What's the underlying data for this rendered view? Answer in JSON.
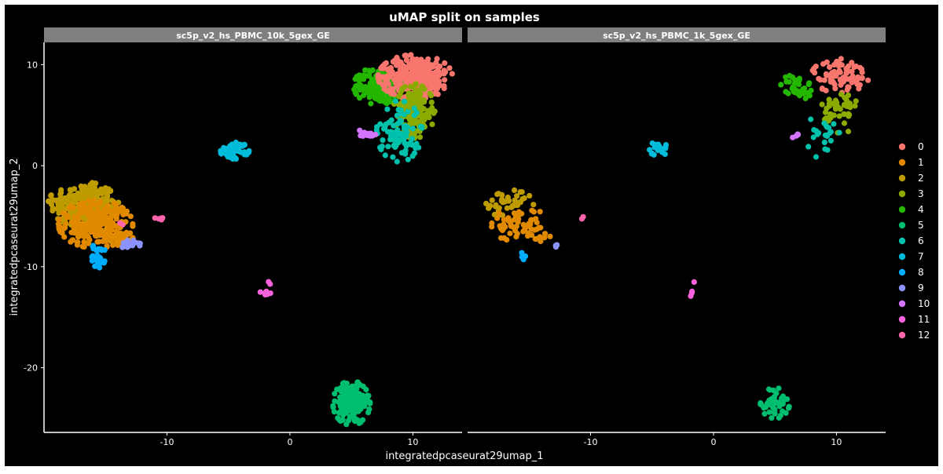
{
  "chart_data": {
    "type": "scatter",
    "title": "uMAP split on samples",
    "xlabel": "integratedpcaseurat29umap_1",
    "ylabel": "integratedpcaseurat29umap_2",
    "xlim": [
      -20,
      14
    ],
    "ylim": [
      -26.4,
      12.2
    ],
    "xticks": [
      -10,
      0,
      10
    ],
    "yticks": [
      10,
      0,
      -10,
      -20
    ],
    "grid": false,
    "legend_position": "right",
    "legend": [
      {
        "label": "0",
        "color": "#F8766D"
      },
      {
        "label": "1",
        "color": "#E18A00"
      },
      {
        "label": "2",
        "color": "#BE9C00"
      },
      {
        "label": "3",
        "color": "#8CAB00"
      },
      {
        "label": "4",
        "color": "#24B700"
      },
      {
        "label": "5",
        "color": "#00BE70"
      },
      {
        "label": "6",
        "color": "#00C1AB"
      },
      {
        "label": "7",
        "color": "#00BBDA"
      },
      {
        "label": "8",
        "color": "#00ACFC"
      },
      {
        "label": "9",
        "color": "#8B93FF"
      },
      {
        "label": "10",
        "color": "#D575FE"
      },
      {
        "label": "11",
        "color": "#F962DD"
      },
      {
        "label": "12",
        "color": "#FF65AC"
      }
    ],
    "panels": [
      {
        "label": "sc5p_v2_hs_PBMC_10k_5gex_GE",
        "clusters": [
          {
            "cluster": "2",
            "cx": -16.8,
            "cy": -3.8,
            "rx": 1.7,
            "ry": 1.3,
            "n": 240
          },
          {
            "cluster": "1",
            "cx": -15.8,
            "cy": -5.8,
            "rx": 1.8,
            "ry": 1.4,
            "n": 240
          },
          {
            "cluster": "1",
            "cx": -14.0,
            "cy": -7.2,
            "rx": 0.8,
            "ry": 0.4,
            "n": 40
          },
          {
            "cluster": "8",
            "cx": -15.6,
            "cy": -8.9,
            "rx": 0.35,
            "ry": 0.8,
            "n": 30
          },
          {
            "cluster": "9",
            "cx": -13.0,
            "cy": -7.8,
            "rx": 0.5,
            "ry": 0.25,
            "n": 18
          },
          {
            "cluster": "12",
            "cx": -13.7,
            "cy": -5.7,
            "rx": 0.1,
            "ry": 0.1,
            "n": 2
          },
          {
            "cluster": "12",
            "cx": -10.7,
            "cy": -5.2,
            "rx": 0.3,
            "ry": 0.15,
            "n": 8
          },
          {
            "cluster": "7",
            "cx": -4.5,
            "cy": 1.5,
            "rx": 0.7,
            "ry": 0.5,
            "n": 60
          },
          {
            "cluster": "11",
            "cx": -2.0,
            "cy": -12.6,
            "rx": 0.25,
            "ry": 0.2,
            "n": 8
          },
          {
            "cluster": "11",
            "cx": -1.6,
            "cy": -11.6,
            "rx": 0.1,
            "ry": 0.1,
            "n": 2
          },
          {
            "cluster": "5",
            "cx": 5.0,
            "cy": -23.5,
            "rx": 0.9,
            "ry": 1.3,
            "n": 160
          },
          {
            "cluster": "4",
            "cx": 7.2,
            "cy": 7.9,
            "rx": 1.2,
            "ry": 1.1,
            "n": 160
          },
          {
            "cluster": "0",
            "cx": 10.2,
            "cy": 8.8,
            "rx": 1.8,
            "ry": 1.3,
            "n": 320
          },
          {
            "cluster": "3",
            "cx": 10.1,
            "cy": 5.4,
            "rx": 1.0,
            "ry": 1.6,
            "n": 150
          },
          {
            "cluster": "6",
            "cx": 8.9,
            "cy": 3.4,
            "rx": 1.1,
            "ry": 1.8,
            "n": 90
          },
          {
            "cluster": "10",
            "cx": 6.2,
            "cy": 3.1,
            "rx": 0.45,
            "ry": 0.35,
            "n": 12
          }
        ]
      },
      {
        "label": "sc5p_v2_hs_PBMC_1k_5gex_GE",
        "clusters": [
          {
            "cluster": "2",
            "cx": -16.7,
            "cy": -3.9,
            "rx": 1.3,
            "ry": 0.9,
            "n": 45
          },
          {
            "cluster": "1",
            "cx": -15.8,
            "cy": -5.8,
            "rx": 1.5,
            "ry": 1.0,
            "n": 55
          },
          {
            "cluster": "1",
            "cx": -14.3,
            "cy": -7.0,
            "rx": 0.6,
            "ry": 0.3,
            "n": 10
          },
          {
            "cluster": "8",
            "cx": -15.5,
            "cy": -9.1,
            "rx": 0.15,
            "ry": 0.3,
            "n": 4
          },
          {
            "cluster": "9",
            "cx": -12.8,
            "cy": -7.9,
            "rx": 0.2,
            "ry": 0.1,
            "n": 3
          },
          {
            "cluster": "12",
            "cx": -10.7,
            "cy": -5.2,
            "rx": 0.1,
            "ry": 0.1,
            "n": 2
          },
          {
            "cluster": "7",
            "cx": -4.5,
            "cy": 1.7,
            "rx": 0.6,
            "ry": 0.4,
            "n": 18
          },
          {
            "cluster": "11",
            "cx": -1.9,
            "cy": -12.6,
            "rx": 0.1,
            "ry": 0.2,
            "n": 3
          },
          {
            "cluster": "11",
            "cx": -1.6,
            "cy": -11.5,
            "rx": 0.05,
            "ry": 0.05,
            "n": 1
          },
          {
            "cluster": "5",
            "cx": 5.0,
            "cy": -23.5,
            "rx": 0.7,
            "ry": 0.9,
            "n": 50
          },
          {
            "cluster": "4",
            "cx": 6.8,
            "cy": 7.8,
            "rx": 0.8,
            "ry": 0.8,
            "n": 35
          },
          {
            "cluster": "0",
            "cx": 10.3,
            "cy": 8.9,
            "rx": 1.4,
            "ry": 1.0,
            "n": 80
          },
          {
            "cluster": "3",
            "cx": 10.3,
            "cy": 5.5,
            "rx": 0.9,
            "ry": 1.4,
            "n": 45
          },
          {
            "cluster": "6",
            "cx": 8.9,
            "cy": 3.0,
            "rx": 0.8,
            "ry": 1.4,
            "n": 22
          },
          {
            "cluster": "10",
            "cx": 6.7,
            "cy": 3.0,
            "rx": 0.4,
            "ry": 0.15,
            "n": 5
          }
        ]
      }
    ]
  }
}
